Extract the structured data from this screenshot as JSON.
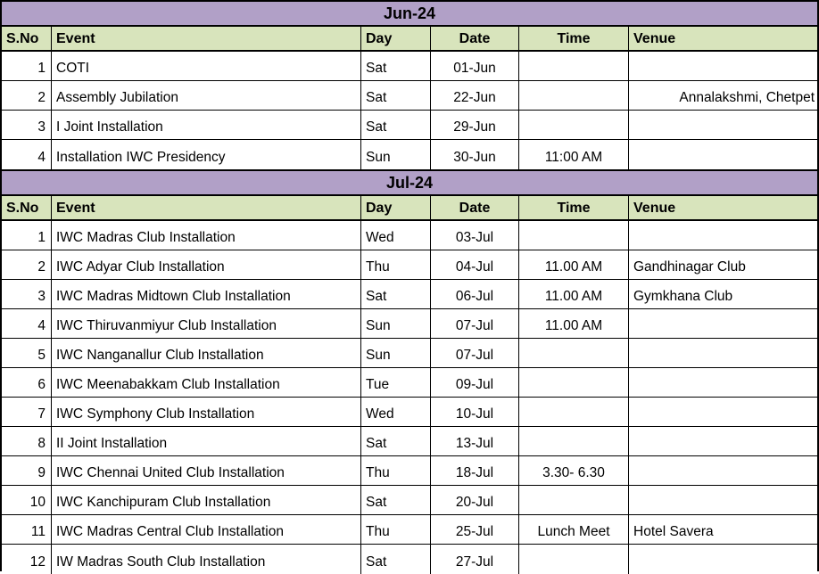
{
  "colors": {
    "banner_bg": "#b1a0c7",
    "header_bg": "#d8e4bc",
    "border": "#000000",
    "row_bg": "#ffffff"
  },
  "sections": [
    {
      "title": "Jun-24",
      "columns": [
        "S.No",
        "Event",
        "Day",
        "Date",
        "Time",
        "Venue"
      ],
      "rows": [
        {
          "sno": "1",
          "event": "COTI",
          "day": "Sat",
          "date": "01-Jun",
          "time": "",
          "venue": ""
        },
        {
          "sno": "2",
          "event": "Assembly Jubilation",
          "day": "Sat",
          "date": "22-Jun",
          "time": "",
          "venue": "Annalakshmi, Chetpet"
        },
        {
          "sno": "3",
          "event": "I Joint Installation",
          "day": "Sat",
          "date": "29-Jun",
          "time": "",
          "venue": ""
        },
        {
          "sno": "4",
          "event": "Installation IWC Presidency",
          "day": "Sun",
          "date": "30-Jun",
          "time": "11:00 AM",
          "venue": ""
        }
      ]
    },
    {
      "title": "Jul-24",
      "columns": [
        "S.No",
        "Event",
        "Day",
        "Date",
        "Time",
        "Venue"
      ],
      "rows": [
        {
          "sno": "1",
          "event": "IWC Madras Club Installation",
          "day": "Wed",
          "date": "03-Jul",
          "time": "",
          "venue": ""
        },
        {
          "sno": "2",
          "event": "IWC Adyar Club Installation",
          "day": "Thu",
          "date": "04-Jul",
          "time": "11.00 AM",
          "venue": "Gandhinagar Club"
        },
        {
          "sno": "3",
          "event": "IWC Madras Midtown Club Installation",
          "day": "Sat",
          "date": "06-Jul",
          "time": "11.00 AM",
          "venue": "Gymkhana Club"
        },
        {
          "sno": "4",
          "event": "IWC Thiruvanmiyur Club Installation",
          "day": "Sun",
          "date": "07-Jul",
          "time": "11.00 AM",
          "venue": ""
        },
        {
          "sno": "5",
          "event": "IWC Nanganallur Club Installation",
          "day": "Sun",
          "date": "07-Jul",
          "time": "",
          "venue": ""
        },
        {
          "sno": "6",
          "event": "IWC Meenabakkam Club Installation",
          "day": "Tue",
          "date": "09-Jul",
          "time": "",
          "venue": ""
        },
        {
          "sno": "7",
          "event": "IWC Symphony Club Installation",
          "day": "Wed",
          "date": "10-Jul",
          "time": "",
          "venue": ""
        },
        {
          "sno": "8",
          "event": "II Joint Installation",
          "day": "Sat",
          "date": "13-Jul",
          "time": "",
          "venue": ""
        },
        {
          "sno": "9",
          "event": "IWC Chennai United Club Installation",
          "day": "Thu",
          "date": "18-Jul",
          "time": "3.30- 6.30",
          "venue": ""
        },
        {
          "sno": "10",
          "event": "IWC Kanchipuram Club Installation",
          "day": "Sat",
          "date": "20-Jul",
          "time": "",
          "venue": ""
        },
        {
          "sno": "11",
          "event": "IWC Madras Central Club Installation",
          "day": "Thu",
          "date": "25-Jul",
          "time": "Lunch Meet",
          "venue": "Hotel Savera"
        },
        {
          "sno": "12",
          "event": "IW Madras South Club Installation",
          "day": "Sat",
          "date": "27-Jul",
          "time": "",
          "venue": ""
        }
      ]
    }
  ]
}
